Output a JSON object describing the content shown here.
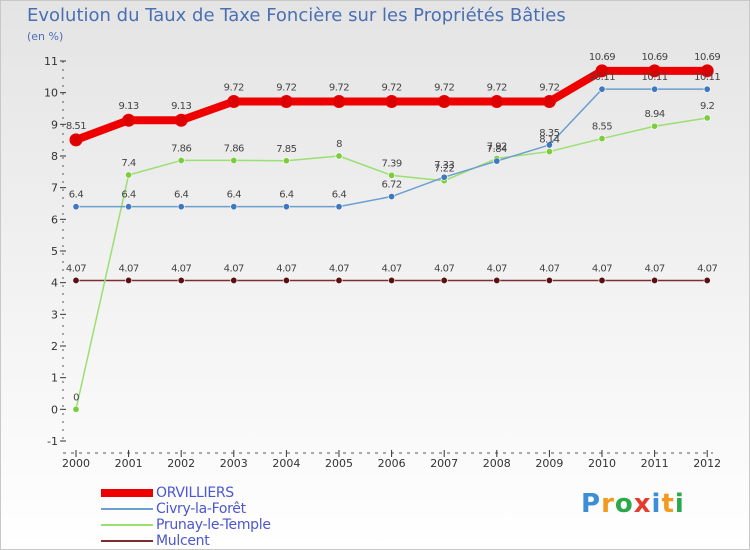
{
  "title": "Evolution du Taux de Taxe Foncière sur les Propriétés Bâties",
  "subtitle": "(en %)",
  "logo": {
    "text": "Proxiti",
    "colors": [
      "#3b8fd6",
      "#f29a1f",
      "#2aa84a",
      "#e53c2e",
      "#3b8fd6",
      "#f29a1f",
      "#2aa84a"
    ]
  },
  "chart_data": {
    "type": "line",
    "title": "Evolution du Taux de Taxe Foncière sur les Propriétés Bâties",
    "ylabel": "(en %)",
    "xlabel": "",
    "categories": [
      "2000",
      "2001",
      "2002",
      "2003",
      "2004",
      "2005",
      "2006",
      "2007",
      "2008",
      "2009",
      "2010",
      "2011",
      "2012"
    ],
    "ylim": [
      -1,
      11
    ],
    "yticks": [
      -1,
      0,
      1,
      2,
      3,
      4,
      5,
      6,
      7,
      8,
      9,
      10,
      11
    ],
    "series": [
      {
        "name": "ORVILLIERS",
        "color": "#ee0000",
        "width": 8,
        "marker_fill": "#dd0000",
        "values": [
          8.51,
          9.13,
          9.13,
          9.72,
          9.72,
          9.72,
          9.72,
          9.72,
          9.72,
          9.72,
          10.69,
          10.69,
          10.69
        ],
        "labels": [
          "8.51",
          "9.13",
          "9.13",
          "9.72",
          "9.72",
          "9.72",
          "9.72",
          "9.72",
          "9.72",
          "9.72",
          "10.69",
          "10.69",
          "10.69"
        ]
      },
      {
        "name": "Civry-la-Forêt",
        "color": "#6a9fd0",
        "width": 1.5,
        "marker_fill": "#3f78c0",
        "values": [
          6.4,
          6.4,
          6.4,
          6.4,
          6.4,
          6.4,
          6.72,
          7.33,
          7.84,
          8.35,
          10.11,
          10.11,
          10.11
        ],
        "labels": [
          "6.4",
          "6.4",
          "6.4",
          "6.4",
          "6.4",
          "6.4",
          "6.72",
          "7.33",
          "7.84",
          "8.35",
          "10.11",
          "10.11",
          "10.11"
        ]
      },
      {
        "name": "Prunay-le-Temple",
        "color": "#99e070",
        "width": 1.5,
        "marker_fill": "#7ccc3e",
        "values": [
          0,
          7.4,
          7.86,
          7.86,
          7.85,
          8,
          7.39,
          7.22,
          7.92,
          8.14,
          8.55,
          8.94,
          9.2
        ],
        "labels": [
          "0",
          "7.4",
          "7.86",
          "7.86",
          "7.85",
          "8",
          "7.39",
          "7.22",
          "7.92",
          "8.14",
          "8.55",
          "8.94",
          "9.2"
        ]
      },
      {
        "name": "Mulcent",
        "color": "#7a2e2e",
        "width": 1.5,
        "marker_fill": "#5a1010",
        "values": [
          4.07,
          4.07,
          4.07,
          4.07,
          4.07,
          4.07,
          4.07,
          4.07,
          4.07,
          4.07,
          4.07,
          4.07,
          4.07
        ],
        "labels": [
          "4.07",
          "4.07",
          "4.07",
          "4.07",
          "4.07",
          "4.07",
          "4.07",
          "4.07",
          "4.07",
          "4.07",
          "4.07",
          "4.07",
          "4.07"
        ]
      }
    ],
    "legend_position": "bottom-left",
    "grid": false
  }
}
